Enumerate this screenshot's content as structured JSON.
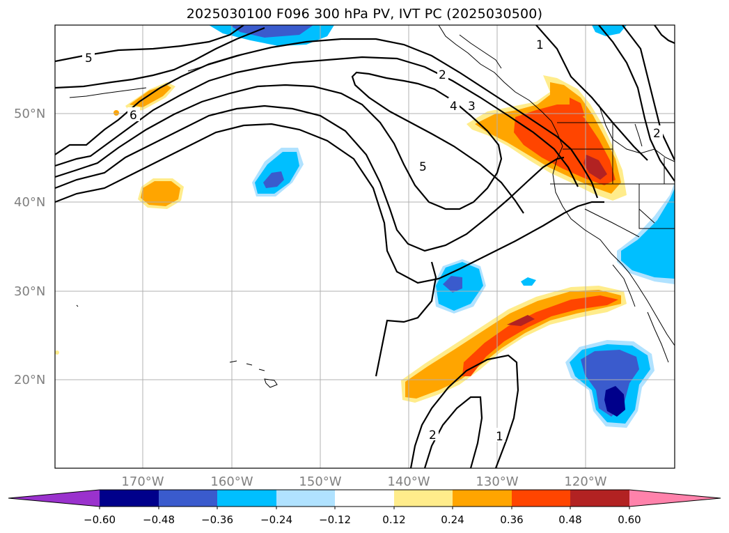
{
  "title": "2025030100 F096 300 hPa PV, IVT PC (2025030500)",
  "map": {
    "lat_labels": [
      "50°N",
      "40°N",
      "30°N",
      "20°N"
    ],
    "lon_labels": [
      "170°W",
      "160°W",
      "150°W",
      "140°W",
      "130°W",
      "120°W"
    ],
    "contour_labels": [
      "5",
      "6",
      "2",
      "1",
      "4",
      "3",
      "5",
      "2",
      "2",
      "1"
    ]
  },
  "colorbar": {
    "ticks": [
      "−0.60",
      "−0.48",
      "−0.36",
      "−0.24",
      "−0.12",
      "0.12",
      "0.24",
      "0.36",
      "0.48",
      "0.60"
    ],
    "colors": [
      "#9a32cd",
      "#00008b",
      "#3a5bcd",
      "#00bfff",
      "#b0e2ff",
      "#ffffff",
      "#ffec8b",
      "#ffa500",
      "#ff4500",
      "#b22222",
      "#ff82ab"
    ]
  }
}
